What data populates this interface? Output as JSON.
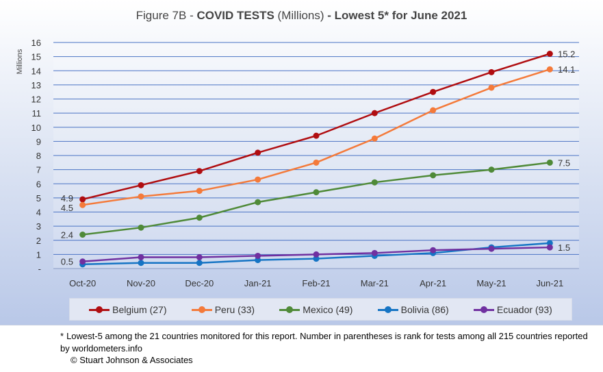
{
  "title": {
    "prefix": "Figure 7B - ",
    "bold1": "COVID TESTS",
    "middle": " (Millions) ",
    "bold2": "- Lowest 5* for June 2021"
  },
  "chart_data": {
    "type": "line",
    "title": "Figure 7B - COVID TESTS (Millions) - Lowest 5* for June 2021",
    "ylabel": "Millions",
    "xlabel": "",
    "categories": [
      "Oct-20",
      "Nov-20",
      "Dec-20",
      "Jan-21",
      "Feb-21",
      "Mar-21",
      "Apr-21",
      "May-21",
      "Jun-21"
    ],
    "ylim": [
      0,
      16
    ],
    "yticks": [
      "-",
      "1",
      "2",
      "3",
      "4",
      "5",
      "6",
      "7",
      "8",
      "9",
      "10",
      "11",
      "12",
      "13",
      "14",
      "15",
      "16"
    ],
    "grid": true,
    "legend_position": "bottom",
    "series": [
      {
        "name": "Belgium (27)",
        "color": "#b00d10",
        "values": [
          4.9,
          5.9,
          6.9,
          8.2,
          9.4,
          11.0,
          12.5,
          13.9,
          15.2
        ],
        "start_label": "4.9",
        "end_label": "15.2"
      },
      {
        "name": "Peru (33)",
        "color": "#f47a3a",
        "values": [
          4.5,
          5.1,
          5.5,
          6.3,
          7.5,
          9.2,
          11.2,
          12.8,
          14.1
        ],
        "start_label": "4.5",
        "end_label": "14.1"
      },
      {
        "name": "Mexico (49)",
        "color": "#4f8a38",
        "values": [
          2.4,
          2.9,
          3.6,
          4.7,
          5.4,
          6.1,
          6.6,
          7.0,
          7.5
        ],
        "start_label": "2.4",
        "end_label": "7.5"
      },
      {
        "name": "Bolivia (86)",
        "color": "#1574c4",
        "values": [
          0.3,
          0.4,
          0.4,
          0.6,
          0.7,
          0.9,
          1.1,
          1.5,
          1.8
        ],
        "start_label": "",
        "end_label": ""
      },
      {
        "name": "Ecuador (93)",
        "color": "#7030a0",
        "values": [
          0.5,
          0.8,
          0.8,
          0.9,
          1.0,
          1.1,
          1.3,
          1.4,
          1.5
        ],
        "start_label": "0.5",
        "end_label": "1.5"
      }
    ]
  },
  "footnote": {
    "star": "*",
    "text": "Lowest-5 among the 21 countries monitored for this report. Number in parentheses is rank for tests among all 215 countries reported by worldometers.info",
    "copyright": "© Stuart Johnson & Associates"
  }
}
